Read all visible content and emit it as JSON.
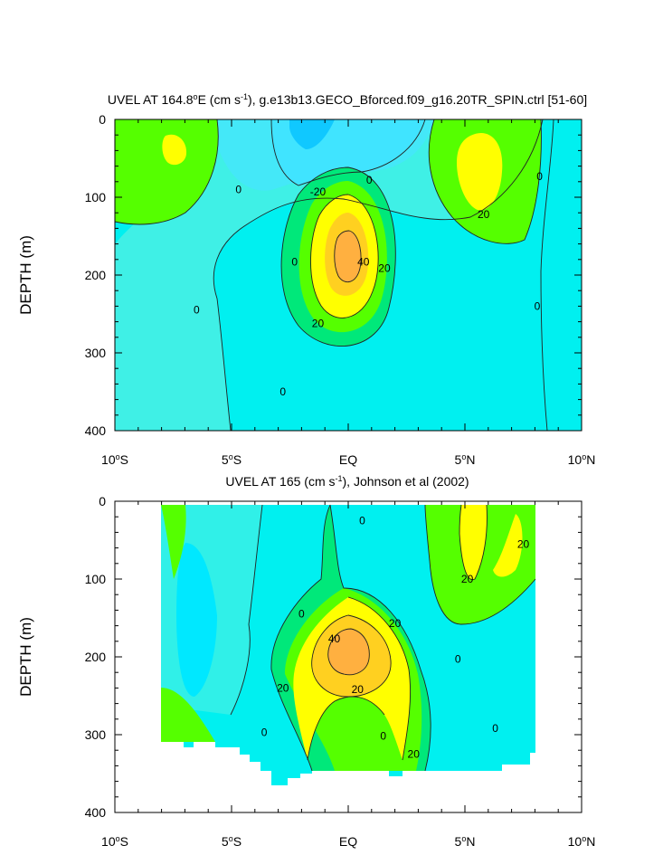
{
  "colors": {
    "minus30": "#00c8ff",
    "minus20": "#3fe8ff",
    "minus10": "#00f0f0",
    "zero_neg": "#20f5d8",
    "plus0": "#00e87a",
    "plus10": "#55ff00",
    "plus20": "#00ff40",
    "plus30": "#ffff00",
    "plus40": "#ffb040",
    "cyan_light": "#44f0e8"
  },
  "chart_data": [
    {
      "type": "contour",
      "title_prefix": "UVEL AT 164.8",
      "title_sup1": "o",
      "title_mid": "E (cm s",
      "title_sup2": "-1",
      "title_suffix": "), g.e13b13.GECO_Bforced.f09_g16.20TR_SPIN.ctrl [51-60]",
      "ylabel": "DEPTH (m)",
      "ylim": [
        400,
        0
      ],
      "xlim": [
        -10,
        10
      ],
      "y_ticks": [
        "0",
        "100",
        "200",
        "300",
        "400"
      ],
      "x_ticks": [
        {
          "num": "10",
          "deg": "o",
          "hemi": "S"
        },
        {
          "num": "5",
          "deg": "o",
          "hemi": "S"
        },
        {
          "num": "EQ",
          "deg": "",
          "hemi": ""
        },
        {
          "num": "5",
          "deg": "o",
          "hemi": "N"
        },
        {
          "num": "10",
          "deg": "o",
          "hemi": "N"
        }
      ],
      "contour_labels": [
        {
          "text": "0",
          "lat": -4.7,
          "depth": 90
        },
        {
          "text": "-20",
          "lat": -1.3,
          "depth": 93
        },
        {
          "text": "0",
          "lat": 0.9,
          "depth": 78
        },
        {
          "text": "0",
          "lat": -2.3,
          "depth": 183
        },
        {
          "text": "40",
          "lat": 0.65,
          "depth": 183
        },
        {
          "text": "20",
          "lat": 1.55,
          "depth": 191
        },
        {
          "text": "20",
          "lat": -1.3,
          "depth": 262
        },
        {
          "text": "0",
          "lat": -6.5,
          "depth": 245
        },
        {
          "text": "0",
          "lat": -2.8,
          "depth": 350
        },
        {
          "text": "20",
          "lat": 5.8,
          "depth": 122
        },
        {
          "text": "0",
          "lat": 8.2,
          "depth": 73
        },
        {
          "text": "0",
          "lat": 8.1,
          "depth": 240
        }
      ]
    },
    {
      "type": "contour",
      "title_prefix": "UVEL AT 165 (cm s",
      "title_sup2": "-1",
      "title_suffix": "), Johnson et al (2002)",
      "ylabel": "DEPTH (m)",
      "ylim": [
        400,
        0
      ],
      "xlim": [
        -10,
        10
      ],
      "y_ticks": [
        "0",
        "100",
        "200",
        "300",
        "400"
      ],
      "x_ticks": [
        {
          "num": "10",
          "deg": "o",
          "hemi": "S"
        },
        {
          "num": "5",
          "deg": "o",
          "hemi": "S"
        },
        {
          "num": "EQ",
          "deg": "",
          "hemi": ""
        },
        {
          "num": "5",
          "deg": "o",
          "hemi": "N"
        },
        {
          "num": "10",
          "deg": "o",
          "hemi": "N"
        }
      ],
      "contour_labels": [
        {
          "text": "0",
          "lat": 0.6,
          "depth": 25
        },
        {
          "text": "20",
          "lat": 7.5,
          "depth": 55
        },
        {
          "text": "20",
          "lat": 5.1,
          "depth": 100
        },
        {
          "text": "0",
          "lat": -2.0,
          "depth": 145
        },
        {
          "text": "20",
          "lat": 2.0,
          "depth": 157
        },
        {
          "text": "40",
          "lat": -0.6,
          "depth": 177
        },
        {
          "text": "0",
          "lat": 4.7,
          "depth": 203
        },
        {
          "text": "20",
          "lat": -2.8,
          "depth": 240
        },
        {
          "text": "20",
          "lat": 0.4,
          "depth": 242
        },
        {
          "text": "0",
          "lat": -3.6,
          "depth": 297
        },
        {
          "text": "0",
          "lat": 1.5,
          "depth": 302
        },
        {
          "text": "20",
          "lat": 2.8,
          "depth": 325
        },
        {
          "text": "0",
          "lat": 6.3,
          "depth": 292
        }
      ]
    }
  ]
}
